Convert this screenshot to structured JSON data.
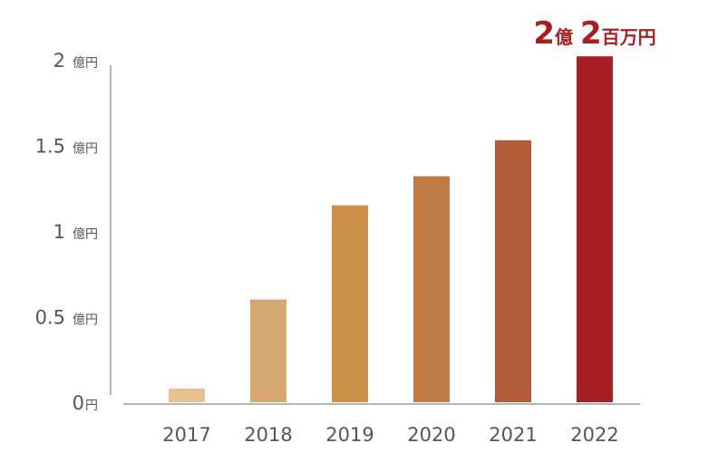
{
  "chart_data": {
    "type": "bar",
    "categories": [
      "2017",
      "2018",
      "2019",
      "2020",
      "2021",
      "2022"
    ],
    "values": [
      0.08,
      0.6,
      1.15,
      1.32,
      1.53,
      2.02
    ],
    "bar_colors": [
      "#e6bf93",
      "#d6a771",
      "#cc9149",
      "#bf7b45",
      "#b35c3a",
      "#a51f24"
    ],
    "ylim": [
      0,
      2
    ],
    "yticks": [
      {
        "value": 0,
        "num": "0",
        "unit": "円"
      },
      {
        "value": 0.5,
        "num": "0.5",
        "unit": "億円"
      },
      {
        "value": 1,
        "num": "1",
        "unit": "億円"
      },
      {
        "value": 1.5,
        "num": "1.5",
        "unit": "億円"
      },
      {
        "value": 2,
        "num": "2",
        "unit": "億円"
      }
    ],
    "annotation": {
      "n1": "2",
      "u1": "億",
      "n2": "2",
      "u2": "百万円"
    },
    "grid": false,
    "axis_color": "#9a9a9a",
    "text_color": "#555555",
    "highlight_color": "#a51f24"
  }
}
